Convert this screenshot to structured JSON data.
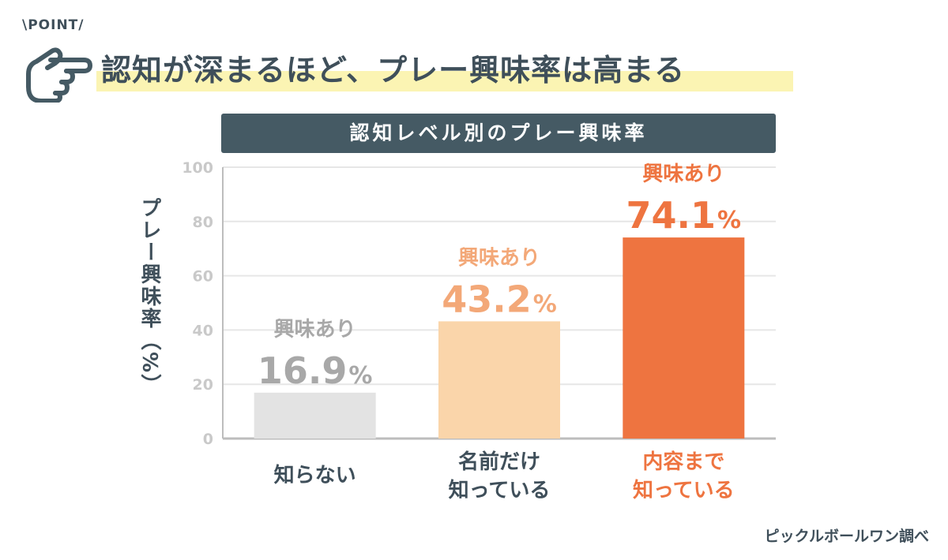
{
  "badge": "POINT",
  "headline": "認知が深まるほど、プレー興味率は高まる",
  "source": "ピックルボールワン調べ",
  "chart_data": {
    "type": "bar",
    "title": "認知レベル別のプレー興味率",
    "ylabel": "プレー興味率（%）",
    "ylim": [
      0,
      100
    ],
    "yticks": [
      "0",
      "20",
      "40",
      "60",
      "80",
      "100"
    ],
    "grid": true,
    "categories": [
      [
        "知らない"
      ],
      [
        "名前だけ",
        "知っている"
      ],
      [
        "内容まで",
        "知っている"
      ]
    ],
    "values": [
      16.9,
      43.2,
      74.1
    ],
    "value_labels": [
      "16.9",
      "43.2",
      "74.1"
    ],
    "value_unit": "%",
    "annotation_label": "興味あり",
    "colors": {
      "bars": [
        "#e3e3e3",
        "#fad5aa",
        "#ee7440"
      ],
      "annotations": [
        "#a8a8a8",
        "#f3a878",
        "#ee7440"
      ],
      "category_text": [
        "#3f4f5a",
        "#3f4f5a",
        "#ee7440"
      ],
      "grid": "#e6e6e6",
      "axis": "#bdbdbd"
    }
  }
}
